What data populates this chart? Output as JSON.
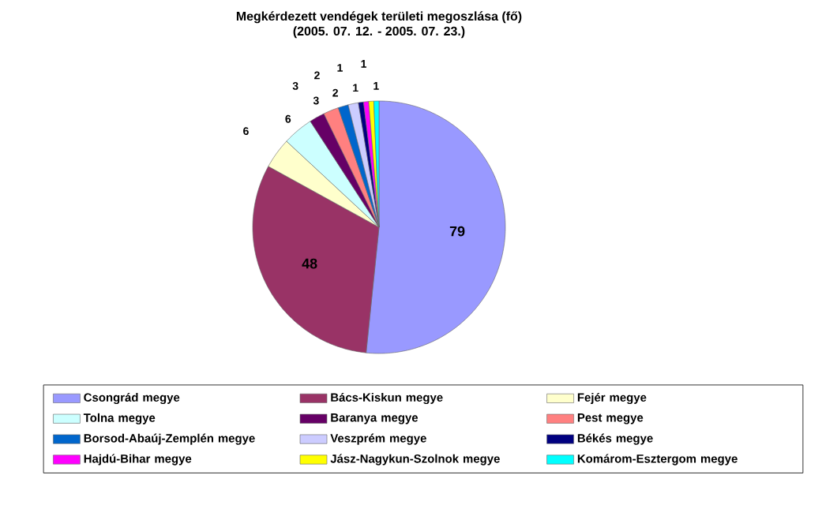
{
  "chart_data": {
    "type": "pie",
    "title": "Megkérdezett vendégek területi megoszlása (fő)",
    "subtitle": "(2005. 07. 12. - 2005. 07. 23.)",
    "categories": [
      "Csongrád megye",
      "Bács-Kiskun megye",
      "Fejér megye",
      "Tolna megye",
      "Baranya megye",
      "Pest megye",
      "Borsod-Abaúj-Zemplén megye",
      "Veszprém megye",
      "Békés megye",
      "Hajdú-Bihar megye",
      "Jász-Nagykun-Szolnok megye",
      "Komárom-Esztergom megye"
    ],
    "values": [
      79,
      48,
      6,
      6,
      3,
      3,
      2,
      2,
      1,
      1,
      1,
      1
    ],
    "colors": [
      "#9999ff",
      "#993366",
      "#ffffcc",
      "#ccffff",
      "#660066",
      "#ff8080",
      "#0066cc",
      "#ccccff",
      "#000080",
      "#ff00ff",
      "#ffff00",
      "#00ffff"
    ],
    "data_labels": true,
    "legend": "bottom"
  }
}
